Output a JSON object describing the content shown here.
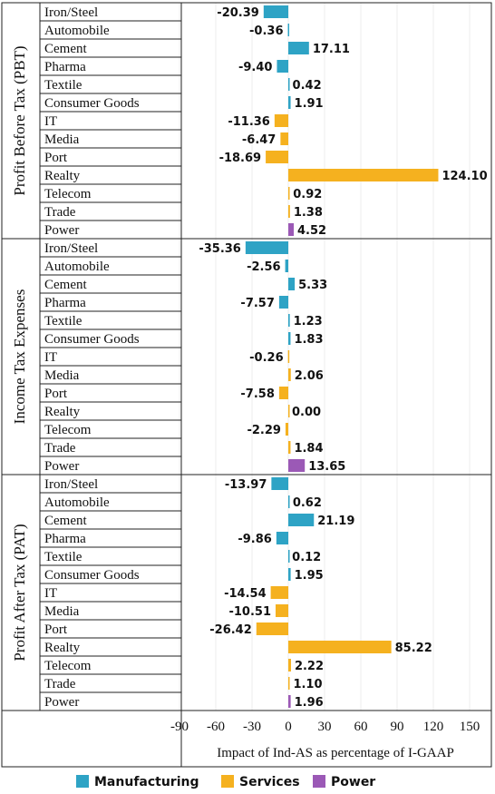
{
  "chart_data": {
    "type": "bar",
    "orientation": "horizontal",
    "xlabel": "Impact of Ind-AS as percentage of I-GAAP",
    "xlim": [
      -90,
      150
    ],
    "xticks": [
      -90,
      -60,
      -30,
      0,
      30,
      60,
      90,
      120,
      150
    ],
    "legend": {
      "placement": "bottom",
      "entries": [
        {
          "name": "Manufacturing",
          "color": "#2ea3c5"
        },
        {
          "name": "Services",
          "color": "#f5b11f"
        },
        {
          "name": "Power",
          "color": "#9b59b6"
        }
      ]
    },
    "groups": [
      {
        "label": "Profit Before Tax (PBT)",
        "rows": [
          {
            "name": "Iron/Steel",
            "sector": "Manufacturing",
            "value": -20.39,
            "label": "-20.39"
          },
          {
            "name": "Automobile",
            "sector": "Manufacturing",
            "value": -0.36,
            "label": "-0.36"
          },
          {
            "name": "Cement",
            "sector": "Manufacturing",
            "value": 17.11,
            "label": "17.11"
          },
          {
            "name": "Pharma",
            "sector": "Manufacturing",
            "value": -9.4,
            "label": "-9.40"
          },
          {
            "name": "Textile",
            "sector": "Manufacturing",
            "value": 0.42,
            "label": "0.42"
          },
          {
            "name": "Consumer Goods",
            "sector": "Manufacturing",
            "value": 1.91,
            "label": "1.91"
          },
          {
            "name": "IT",
            "sector": "Services",
            "value": -11.36,
            "label": "-11.36"
          },
          {
            "name": "Media",
            "sector": "Services",
            "value": -6.47,
            "label": "-6.47"
          },
          {
            "name": "Port",
            "sector": "Services",
            "value": -18.69,
            "label": "-18.69"
          },
          {
            "name": "Realty",
            "sector": "Services",
            "value": 124.1,
            "label": "124.10"
          },
          {
            "name": "Telecom",
            "sector": "Services",
            "value": 0.92,
            "label": "0.92"
          },
          {
            "name": "Trade",
            "sector": "Services",
            "value": 1.38,
            "label": "1.38"
          },
          {
            "name": "Power",
            "sector": "Power",
            "value": 4.52,
            "label": "4.52"
          }
        ]
      },
      {
        "label": "Income Tax Expenses",
        "rows": [
          {
            "name": "Iron/Steel",
            "sector": "Manufacturing",
            "value": -35.36,
            "label": "-35.36"
          },
          {
            "name": "Automobile",
            "sector": "Manufacturing",
            "value": -2.56,
            "label": "-2.56"
          },
          {
            "name": "Cement",
            "sector": "Manufacturing",
            "value": 5.33,
            "label": "5.33"
          },
          {
            "name": "Pharma",
            "sector": "Manufacturing",
            "value": -7.57,
            "label": "-7.57"
          },
          {
            "name": "Textile",
            "sector": "Manufacturing",
            "value": 1.23,
            "label": "1.23"
          },
          {
            "name": "Consumer Goods",
            "sector": "Manufacturing",
            "value": 1.83,
            "label": "1.83"
          },
          {
            "name": "IT",
            "sector": "Services",
            "value": -0.26,
            "label": "-0.26"
          },
          {
            "name": "Media",
            "sector": "Services",
            "value": 2.06,
            "label": "2.06"
          },
          {
            "name": "Port",
            "sector": "Services",
            "value": -7.58,
            "label": "-7.58"
          },
          {
            "name": "Realty",
            "sector": "Services",
            "value": 0.0,
            "label": "0.00"
          },
          {
            "name": "Telecom",
            "sector": "Services",
            "value": -2.29,
            "label": "-2.29"
          },
          {
            "name": "Trade",
            "sector": "Services",
            "value": 1.84,
            "label": "1.84"
          },
          {
            "name": "Power",
            "sector": "Power",
            "value": 13.65,
            "label": "13.65"
          }
        ]
      },
      {
        "label": "Profit After Tax (PAT)",
        "rows": [
          {
            "name": "Iron/Steel",
            "sector": "Manufacturing",
            "value": -13.97,
            "label": "-13.97"
          },
          {
            "name": "Automobile",
            "sector": "Manufacturing",
            "value": 0.62,
            "label": "0.62"
          },
          {
            "name": "Cement",
            "sector": "Manufacturing",
            "value": 21.19,
            "label": "21.19"
          },
          {
            "name": "Pharma",
            "sector": "Manufacturing",
            "value": -9.86,
            "label": "-9.86"
          },
          {
            "name": "Textile",
            "sector": "Manufacturing",
            "value": 0.12,
            "label": "0.12"
          },
          {
            "name": "Consumer Goods",
            "sector": "Manufacturing",
            "value": 1.95,
            "label": "1.95"
          },
          {
            "name": "IT",
            "sector": "Services",
            "value": -14.54,
            "label": "-14.54"
          },
          {
            "name": "Media",
            "sector": "Services",
            "value": -10.51,
            "label": "-10.51"
          },
          {
            "name": "Port",
            "sector": "Services",
            "value": -26.42,
            "label": "-26.42"
          },
          {
            "name": "Realty",
            "sector": "Services",
            "value": 85.22,
            "label": "85.22"
          },
          {
            "name": "Telecom",
            "sector": "Services",
            "value": 2.22,
            "label": "2.22"
          },
          {
            "name": "Trade",
            "sector": "Services",
            "value": 1.1,
            "label": "1.10"
          },
          {
            "name": "Power",
            "sector": "Power",
            "value": 1.96,
            "label": "1.96"
          }
        ]
      }
    ]
  }
}
